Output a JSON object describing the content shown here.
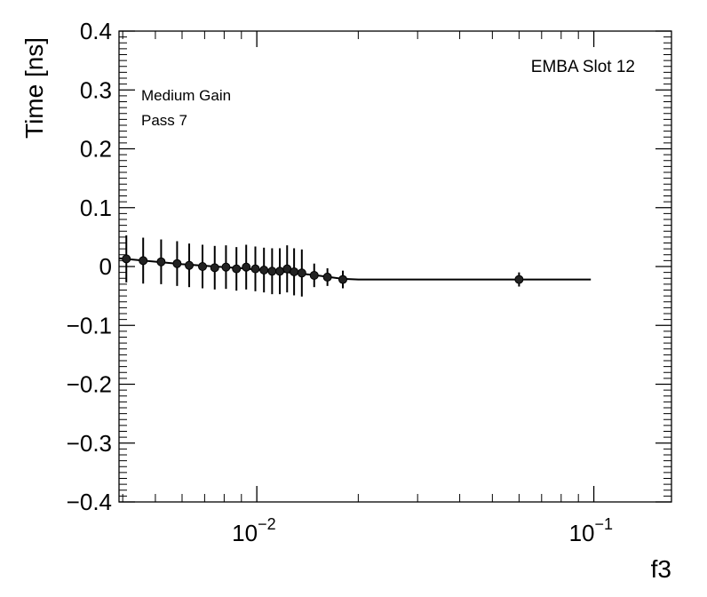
{
  "chart_data": {
    "type": "scatter",
    "xlabel": "f3",
    "ylabel": "Time [ns]",
    "xscale": "log",
    "xlim": [
      0.0039,
      0.17
    ],
    "ylim": [
      -0.4,
      0.4
    ],
    "y_ticks": [
      {
        "value": 0.4,
        "label": "0.4"
      },
      {
        "value": 0.3,
        "label": "0.3"
      },
      {
        "value": 0.2,
        "label": "0.2"
      },
      {
        "value": 0.1,
        "label": "0.1"
      },
      {
        "value": 0.0,
        "label": "0"
      },
      {
        "value": -0.1,
        "label": "−0.1"
      },
      {
        "value": -0.2,
        "label": "−0.2"
      },
      {
        "value": -0.3,
        "label": "−0.3"
      },
      {
        "value": -0.4,
        "label": "−0.4"
      }
    ],
    "x_ticks": [
      {
        "value": 0.01,
        "base": "10",
        "exp": "−2"
      },
      {
        "value": 0.1,
        "base": "10",
        "exp": "−1"
      }
    ],
    "grid": false,
    "annotations": {
      "top_right": "EMBA Slot 12",
      "line1": "Medium Gain",
      "line2": "Pass 7"
    },
    "series": [
      {
        "points": [
          {
            "x": 0.0041,
            "y": 0.013,
            "err": 0.04
          },
          {
            "x": 0.0046,
            "y": 0.01,
            "err": 0.039
          },
          {
            "x": 0.0052,
            "y": 0.008,
            "err": 0.038
          },
          {
            "x": 0.0058,
            "y": 0.005,
            "err": 0.038
          },
          {
            "x": 0.0063,
            "y": 0.002,
            "err": 0.037
          },
          {
            "x": 0.0069,
            "y": 0.0,
            "err": 0.037
          },
          {
            "x": 0.0075,
            "y": -0.002,
            "err": 0.037
          },
          {
            "x": 0.0081,
            "y": -0.001,
            "err": 0.037
          },
          {
            "x": 0.0087,
            "y": -0.004,
            "err": 0.037
          },
          {
            "x": 0.0093,
            "y": -0.001,
            "err": 0.038
          },
          {
            "x": 0.0099,
            "y": -0.004,
            "err": 0.038
          },
          {
            "x": 0.0105,
            "y": -0.006,
            "err": 0.038
          },
          {
            "x": 0.0111,
            "y": -0.008,
            "err": 0.039
          },
          {
            "x": 0.0117,
            "y": -0.008,
            "err": 0.039
          },
          {
            "x": 0.0123,
            "y": -0.004,
            "err": 0.04
          },
          {
            "x": 0.0129,
            "y": -0.009,
            "err": 0.04
          },
          {
            "x": 0.0136,
            "y": -0.011,
            "err": 0.04
          },
          {
            "x": 0.0148,
            "y": -0.015,
            "err": 0.02
          },
          {
            "x": 0.0162,
            "y": -0.018,
            "err": 0.015
          },
          {
            "x": 0.018,
            "y": -0.022,
            "err": 0.015
          },
          {
            "x": 0.06,
            "y": -0.022,
            "err": 0.012
          }
        ]
      }
    ],
    "fit": {
      "points": [
        {
          "x": 0.0039,
          "y": 0.014
        },
        {
          "x": 0.006,
          "y": 0.004
        },
        {
          "x": 0.009,
          "y": -0.003
        },
        {
          "x": 0.012,
          "y": -0.009
        },
        {
          "x": 0.015,
          "y": -0.015
        },
        {
          "x": 0.018,
          "y": -0.021
        },
        {
          "x": 0.02,
          "y": -0.022
        },
        {
          "x": 0.098,
          "y": -0.022
        }
      ]
    }
  }
}
